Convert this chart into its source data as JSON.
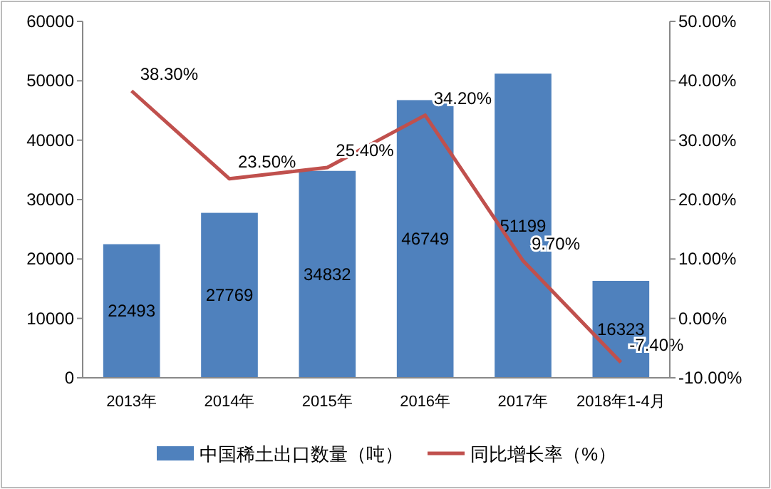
{
  "chart_data": {
    "type": "bar",
    "categories": [
      "2013年",
      "2014年",
      "2015年",
      "2016年",
      "2017年",
      "2018年1-4月"
    ],
    "series": [
      {
        "name": "中国稀土出口数量（吨）",
        "color": "#4f81bd",
        "values": [
          22493,
          27769,
          34832,
          46749,
          51199,
          16323
        ],
        "value_labels": [
          "22493",
          "27769",
          "34832",
          "46749",
          "51199",
          "16323"
        ]
      },
      {
        "name": "同比增长率（%）",
        "type": "line",
        "axis": "y2",
        "color": "#c0504d",
        "values": [
          38.3,
          23.5,
          25.4,
          34.2,
          9.7,
          -7.4
        ],
        "value_labels": [
          "38.30%",
          "23.50%",
          "25.40%",
          "34.20%",
          "9.70%",
          "-7.40%"
        ]
      }
    ],
    "ylim": [
      0,
      60000
    ],
    "yticks": [
      0,
      10000,
      20000,
      30000,
      40000,
      50000,
      60000
    ],
    "y2lim": [
      -10,
      50
    ],
    "y2ticks": [
      {
        "value": -10,
        "label": "-10.00%"
      },
      {
        "value": 0,
        "label": "0.00%"
      },
      {
        "value": 10,
        "label": "10.00%"
      },
      {
        "value": 20,
        "label": "20.00%"
      },
      {
        "value": 30,
        "label": "30.00%"
      },
      {
        "value": 40,
        "label": "40.00%"
      },
      {
        "value": 50,
        "label": "50.00%"
      }
    ],
    "legend": "bottom",
    "marker": "none",
    "line_style": "solid"
  }
}
